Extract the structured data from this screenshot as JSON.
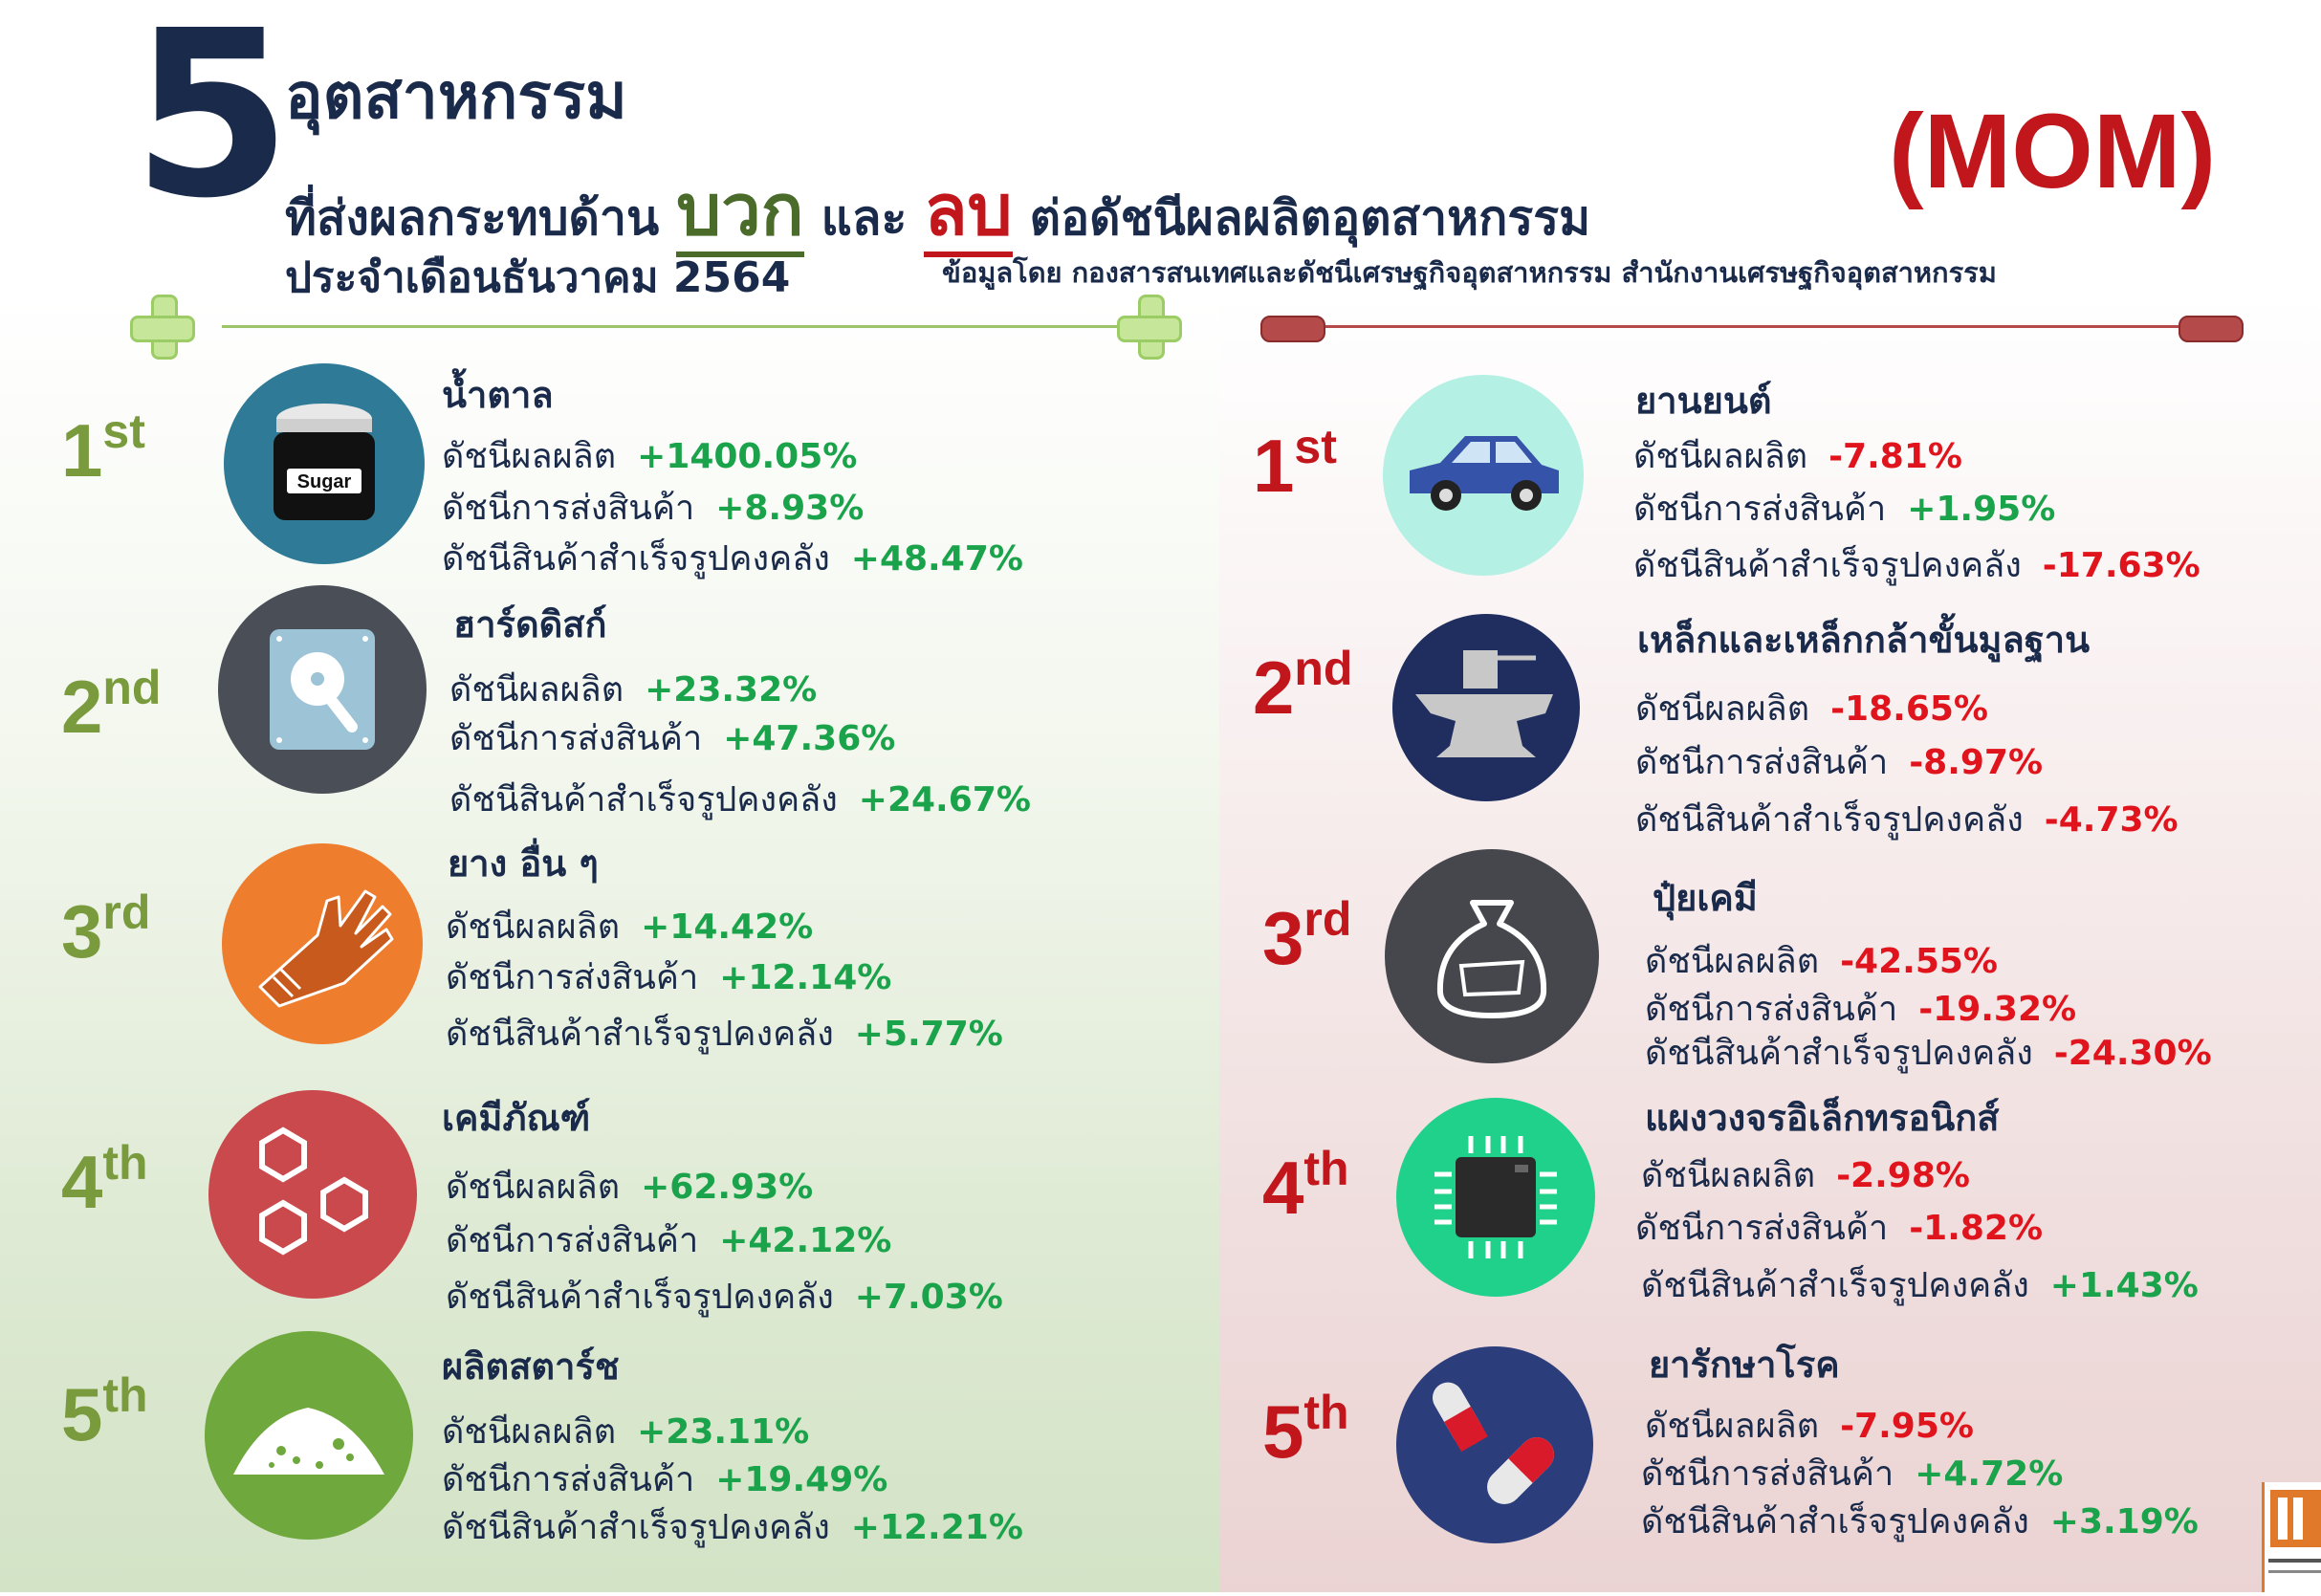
{
  "header": {
    "big_number": "5",
    "title_line1": "อุตสาหกรรม",
    "title_line2_pre": "ที่ส่งผลกระทบด้าน",
    "positive_word": "บวก",
    "title_line2_mid": "และ",
    "negative_word": "ลบ",
    "title_line2_post": "ต่อดัชนีผลผลิตอุตสาหกรรม",
    "period": "ประจำเดือนธันวาคม 2564",
    "mom": "(MOM)",
    "source": "ข้อมูลโดย กองสารสนเทศและดัชนีเศรษฐกิจอุตสาหกรรม สำนักงานเศรษฐกิจอุตสาหกรรม"
  },
  "colors": {
    "positive": "#1aa34a",
    "negative": "#e0141c",
    "title": "#1a2a4a",
    "rank_positive": "#7a9a3e",
    "rank_negative": "#c0161c"
  },
  "positive": [
    {
      "rank": "1",
      "suffix": "st",
      "name": "น้ำตาล",
      "icon": "sugar-jar-icon",
      "l1": "ดัชนีผลผลิต",
      "v1": "+1400.05%",
      "l2": "ดัชนีการส่งสินค้า",
      "v2": "+8.93%",
      "l3": "ดัชนีสินค้าสำเร็จรูปคงคลัง",
      "v3": "+48.47%",
      "icon_text": "Sugar"
    },
    {
      "rank": "2",
      "suffix": "nd",
      "name": "ฮาร์ดดิสก์",
      "icon": "hard-disk-icon",
      "l1": "ดัชนีผลผลิต",
      "v1": "+23.32%",
      "l2": "ดัชนีการส่งสินค้า",
      "v2": "+47.36%",
      "l3": "ดัชนีสินค้าสำเร็จรูปคงคลัง",
      "v3": "+24.67%"
    },
    {
      "rank": "3",
      "suffix": "rd",
      "name": "ยาง อื่น ๆ",
      "icon": "rubber-glove-icon",
      "l1": "ดัชนีผลผลิต",
      "v1": "+14.42%",
      "l2": "ดัชนีการส่งสินค้า",
      "v2": "+12.14%",
      "l3": "ดัชนีสินค้าสำเร็จรูปคงคลัง",
      "v3": "+5.77%"
    },
    {
      "rank": "4",
      "suffix": "th",
      "name": "เคมีภัณฑ์",
      "icon": "hexagon-molecule-icon",
      "l1": "ดัชนีผลผลิต",
      "v1": "+62.93%",
      "l2": "ดัชนีการส่งสินค้า",
      "v2": "+42.12%",
      "l3": "ดัชนีสินค้าสำเร็จรูปคงคลัง",
      "v3": "+7.03%"
    },
    {
      "rank": "5",
      "suffix": "th",
      "name": "ผลิตสตาร์ช",
      "icon": "starch-pile-icon",
      "l1": "ดัชนีผลผลิต",
      "v1": "+23.11%",
      "l2": "ดัชนีการส่งสินค้า",
      "v2": "+19.49%",
      "l3": "ดัชนีสินค้าสำเร็จรูปคงคลัง",
      "v3": "+12.21%"
    }
  ],
  "negative": [
    {
      "rank": "1",
      "suffix": "st",
      "name": "ยานยนต์",
      "icon": "car-icon",
      "l1": "ดัชนีผลผลิต",
      "v1": "-7.81%",
      "l2": "ดัชนีการส่งสินค้า",
      "v2": "+1.95%",
      "l3": "ดัชนีสินค้าสำเร็จรูปคงคลัง",
      "v3": "-17.63%"
    },
    {
      "rank": "2",
      "suffix": "nd",
      "name": "เหล็กและเหล็กกล้าขั้นมูลฐาน",
      "icon": "anvil-icon",
      "l1": "ดัชนีผลผลิต",
      "v1": "-18.65%",
      "l2": "ดัชนีการส่งสินค้า",
      "v2": "-8.97%",
      "l3": "ดัชนีสินค้าสำเร็จรูปคงคลัง",
      "v3": "-4.73%"
    },
    {
      "rank": "3",
      "suffix": "rd",
      "name": "ปุ๋ยเคมี",
      "icon": "fertilizer-sack-icon",
      "l1": "ดัชนีผลผลิต",
      "v1": "-42.55%",
      "l2": "ดัชนีการส่งสินค้า",
      "v2": "-19.32%",
      "l3": "ดัชนีสินค้าสำเร็จรูปคงคลัง",
      "v3": "-24.30%"
    },
    {
      "rank": "4",
      "suffix": "th",
      "name": "แผงวงจรอิเล็กทรอนิกส์",
      "icon": "microchip-icon",
      "l1": "ดัชนีผลผลิต",
      "v1": "-2.98%",
      "l2": "ดัชนีการส่งสินค้า",
      "v2": "-1.82%",
      "l3": "ดัชนีสินค้าสำเร็จรูปคงคลัง",
      "v3": "+1.43%"
    },
    {
      "rank": "5",
      "suffix": "th",
      "name": "ยารักษาโรค",
      "icon": "pill-capsule-icon",
      "l1": "ดัชนีผลผลิต",
      "v1": "-7.95%",
      "l2": "ดัชนีการส่งสินค้า",
      "v2": "+4.72%",
      "l3": "ดัชนีสินค้าสำเร็จรูปคงคลัง",
      "v3": "+3.19%"
    }
  ]
}
